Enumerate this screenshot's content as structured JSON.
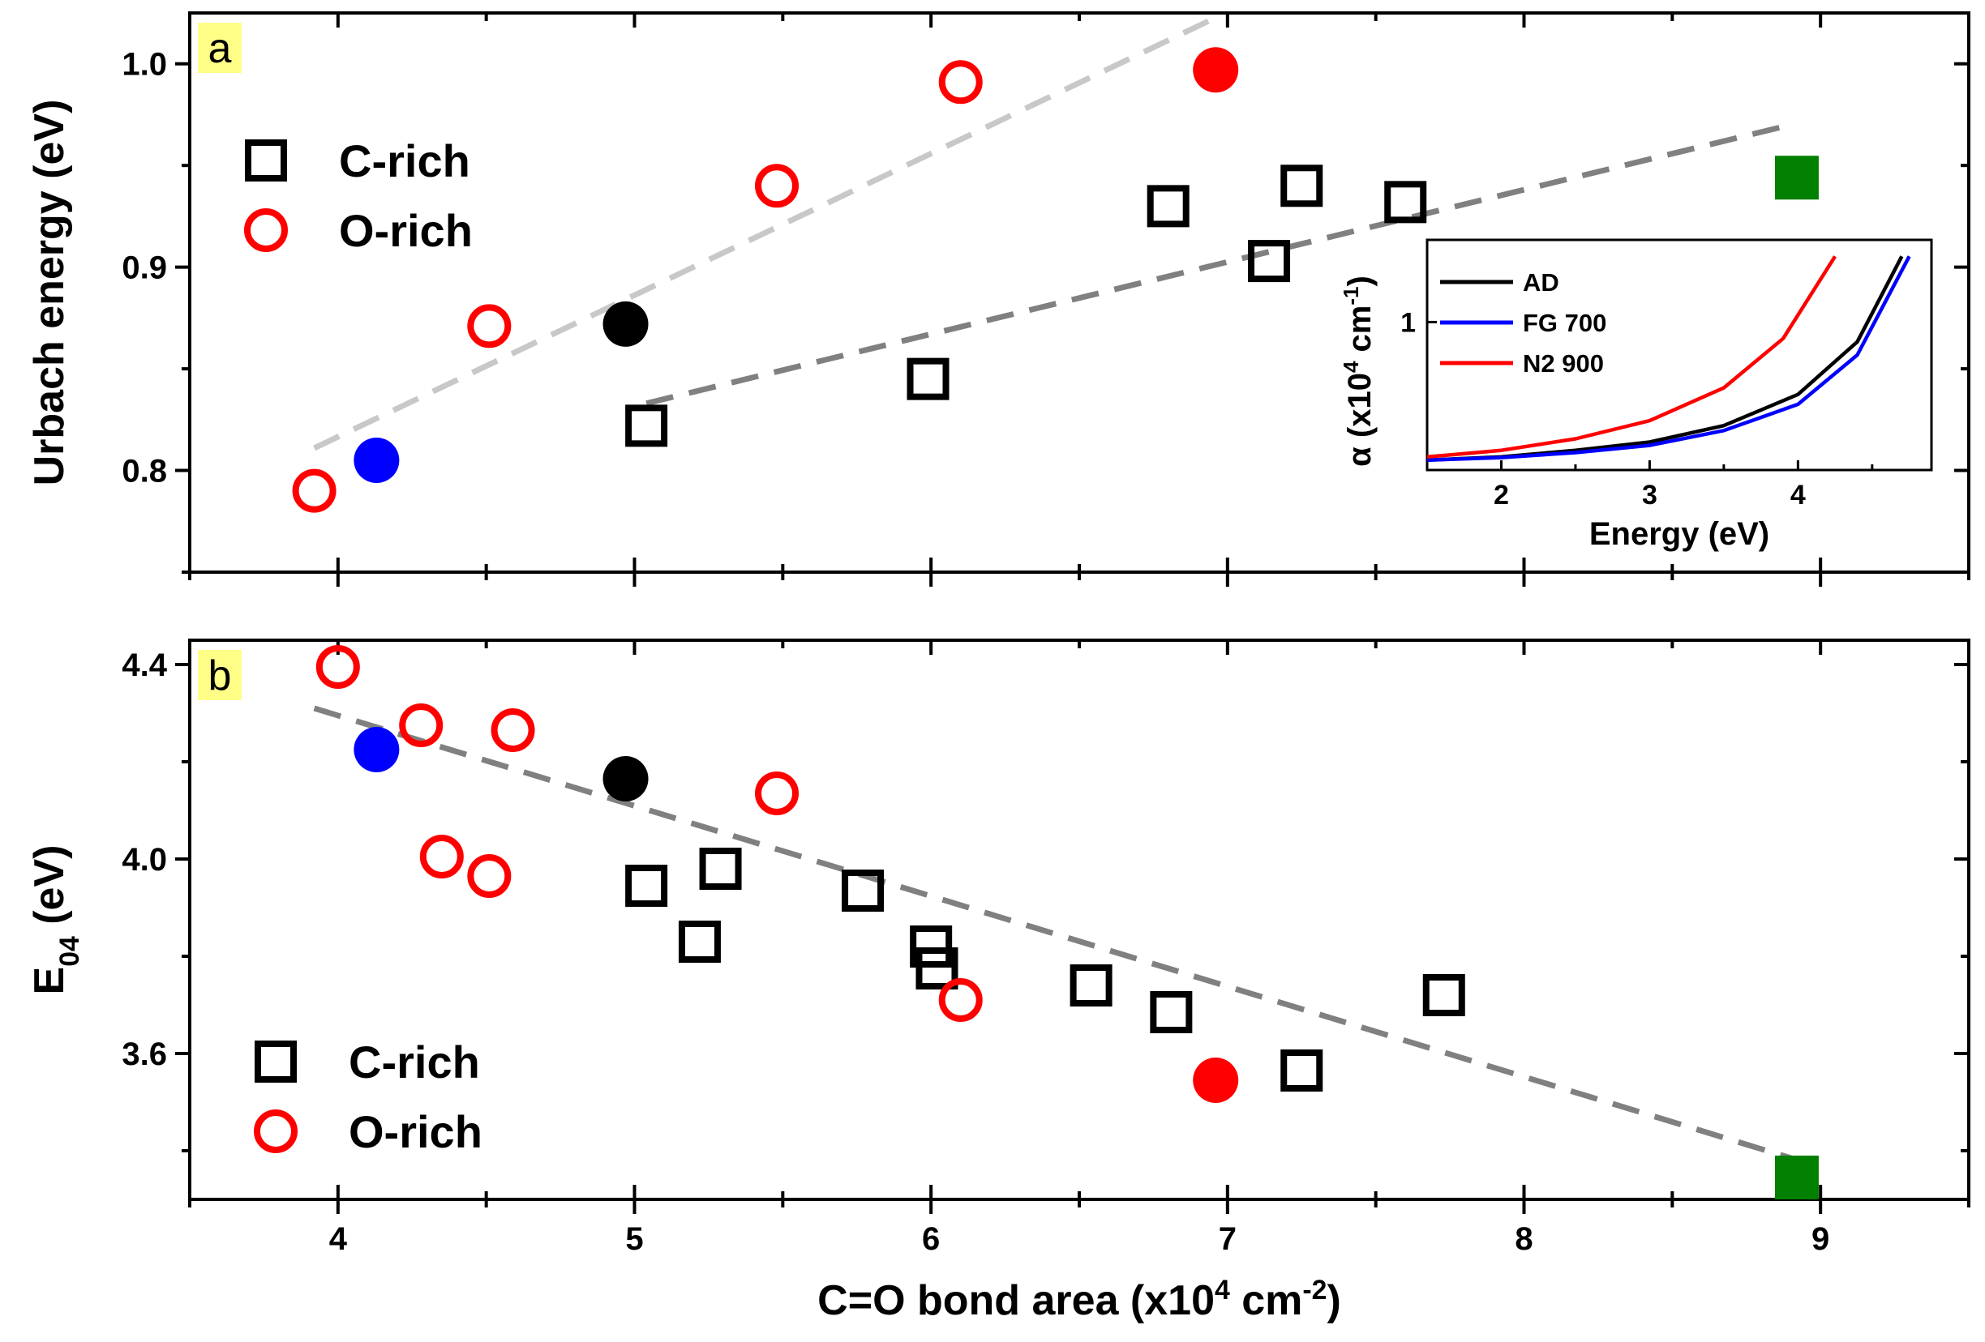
{
  "chart_data": [
    {
      "id": "panel_a",
      "type": "scatter",
      "panel_label": "a",
      "xlabel": {
        "prefix": "C=O bond area (x10",
        "sup": "4",
        "mid": " cm",
        "sup2": "-2",
        "suffix": ")"
      },
      "ylabel": "Urbach energy (eV)",
      "xlim": [
        3.5,
        9.5
      ],
      "ylim": [
        0.75,
        1.025
      ],
      "x_ticks": [
        4,
        5,
        6,
        7,
        8,
        9
      ],
      "y_ticks": [
        0.8,
        0.9,
        1.0
      ],
      "y_tick_labels": [
        "0.8",
        "0.9",
        "1.0"
      ],
      "legend": [
        {
          "label": "C-rich",
          "marker": "open-square",
          "color": "#000000"
        },
        {
          "label": "O-rich",
          "marker": "open-circle",
          "color": "#ff0000"
        }
      ],
      "series": [
        {
          "name": "C-rich",
          "marker": "open-square",
          "color": "#000000",
          "x": [
            5.04,
            5.99,
            6.8,
            7.14,
            7.25,
            7.6
          ],
          "y": [
            0.822,
            0.845,
            0.93,
            0.903,
            0.94,
            0.932
          ]
        },
        {
          "name": "O-rich",
          "marker": "open-circle",
          "color": "#ff0000",
          "x": [
            3.92,
            4.51,
            5.48,
            6.1
          ],
          "y": [
            0.79,
            0.871,
            0.94,
            0.991
          ]
        },
        {
          "name": "AD",
          "marker": "filled-circle",
          "color": "#000000",
          "x": [
            4.97
          ],
          "y": [
            0.872
          ]
        },
        {
          "name": "FG 700",
          "marker": "filled-circle",
          "color": "#0000ff",
          "x": [
            4.13
          ],
          "y": [
            0.805
          ]
        },
        {
          "name": "N2 900",
          "marker": "filled-circle",
          "color": "#ff0000",
          "x": [
            6.96
          ],
          "y": [
            0.997
          ]
        },
        {
          "name": "green",
          "marker": "filled-square",
          "color": "#007f00",
          "x": [
            8.92
          ],
          "y": [
            0.944
          ]
        }
      ],
      "fit_lines": [
        {
          "name": "O-rich fit",
          "color": "#c8c8c8",
          "x": [
            3.92,
            6.95
          ],
          "y": [
            0.811,
            1.022
          ]
        },
        {
          "name": "C-rich fit",
          "color": "#808080",
          "x": [
            5.04,
            8.9
          ],
          "y": [
            0.833,
            0.97
          ]
        }
      ],
      "inset": {
        "type": "line",
        "xlabel": "Energy (eV)",
        "ylabel": {
          "prefix": "α (x10",
          "sup": "4",
          "mid": " cm",
          "sup2": "-1",
          "suffix": ")"
        },
        "xlim": [
          1.5,
          4.9
        ],
        "ylim": [
          0.55,
          1.25
        ],
        "x_ticks": [
          2,
          3,
          4
        ],
        "y_ticks": [
          1
        ],
        "y_tick_labels": [
          "1"
        ],
        "legend": [
          "AD",
          "FG 700",
          "N2 900"
        ],
        "series": [
          {
            "name": "AD",
            "color": "#000000",
            "x": [
              1.5,
              2.0,
              2.5,
              3.0,
              3.5,
              4.0,
              4.4,
              4.7
            ],
            "y": [
              0.58,
              0.59,
              0.61,
              0.635,
              0.685,
              0.78,
              0.94,
              1.2
            ]
          },
          {
            "name": "FG 700",
            "color": "#0000ff",
            "x": [
              1.5,
              2.0,
              2.5,
              3.0,
              3.5,
              4.0,
              4.4,
              4.75
            ],
            "y": [
              0.58,
              0.588,
              0.603,
              0.625,
              0.67,
              0.75,
              0.9,
              1.2
            ]
          },
          {
            "name": "N2 900",
            "color": "#ff0000",
            "x": [
              1.5,
              2.0,
              2.5,
              3.0,
              3.5,
              3.9,
              4.25
            ],
            "y": [
              0.59,
              0.61,
              0.645,
              0.7,
              0.8,
              0.95,
              1.2
            ]
          }
        ]
      }
    },
    {
      "id": "panel_b",
      "type": "scatter",
      "panel_label": "b",
      "xlabel": {
        "prefix": "C=O bond area (x10",
        "sup": "4",
        "mid": " cm",
        "sup2": "-2",
        "suffix": ")"
      },
      "ylabel": {
        "main": "E",
        "sub": "04",
        "suffix": " (eV)"
      },
      "xlim": [
        3.5,
        9.5
      ],
      "ylim": [
        3.3,
        4.45
      ],
      "x_ticks": [
        4,
        5,
        6,
        7,
        8,
        9
      ],
      "x_tick_labels": [
        "4",
        "5",
        "6",
        "7",
        "8",
        "9"
      ],
      "y_ticks": [
        3.6,
        4.0,
        4.4
      ],
      "y_tick_labels": [
        "3.6",
        "4.0",
        "4.4"
      ],
      "legend": [
        {
          "label": "C-rich",
          "marker": "open-square",
          "color": "#000000"
        },
        {
          "label": "O-rich",
          "marker": "open-circle",
          "color": "#ff0000"
        }
      ],
      "series": [
        {
          "name": "C-rich",
          "marker": "open-square",
          "color": "#000000",
          "x": [
            5.04,
            5.22,
            5.29,
            5.77,
            6.0,
            6.02,
            6.54,
            6.81,
            7.25,
            7.73
          ],
          "y": [
            3.945,
            3.83,
            3.98,
            3.935,
            3.82,
            3.775,
            3.74,
            3.685,
            3.565,
            3.72
          ]
        },
        {
          "name": "O-rich",
          "marker": "open-circle",
          "color": "#ff0000",
          "x": [
            4.0,
            4.28,
            4.35,
            4.51,
            4.59,
            5.48,
            6.1
          ],
          "y": [
            4.395,
            4.275,
            4.005,
            3.965,
            4.265,
            4.135,
            3.71
          ]
        },
        {
          "name": "AD",
          "marker": "filled-circle",
          "color": "#000000",
          "x": [
            4.97
          ],
          "y": [
            4.165
          ]
        },
        {
          "name": "FG 700",
          "marker": "filled-circle",
          "color": "#0000ff",
          "x": [
            4.13
          ],
          "y": [
            4.225
          ]
        },
        {
          "name": "N2 900",
          "marker": "filled-circle",
          "color": "#ff0000",
          "x": [
            6.96
          ],
          "y": [
            3.545
          ]
        },
        {
          "name": "green",
          "marker": "filled-square",
          "color": "#007f00",
          "x": [
            8.92
          ],
          "y": [
            3.345
          ]
        }
      ],
      "fit_lines": [
        {
          "name": "combined fit",
          "color": "#808080",
          "x": [
            3.92,
            8.9
          ],
          "y": [
            4.31,
            3.385
          ]
        }
      ]
    }
  ]
}
